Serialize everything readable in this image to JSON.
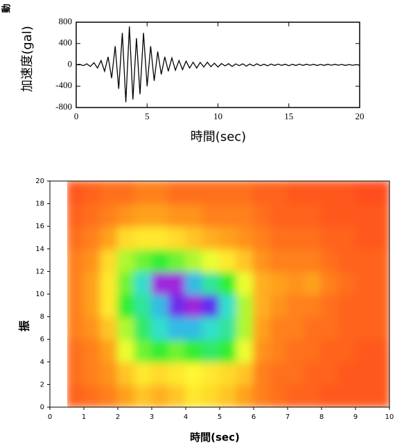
{
  "chart_data": [
    {
      "type": "line",
      "corner_label": "動",
      "xlabel": "時間(sec)",
      "ylabel": "加速度(gal)",
      "color": "#000000",
      "xlim": [
        0,
        20
      ],
      "xticks": [
        0,
        5,
        10,
        15,
        20
      ],
      "ylim": [
        -800,
        800
      ],
      "yticks": [
        -800,
        -400,
        0,
        400,
        800
      ],
      "x": [
        0,
        0.25,
        0.5,
        0.75,
        1,
        1.25,
        1.5,
        1.75,
        2,
        2.25,
        2.5,
        2.75,
        3,
        3.25,
        3.5,
        3.75,
        4,
        4.25,
        4.5,
        4.75,
        5,
        5.25,
        5.5,
        5.75,
        6,
        6.25,
        6.5,
        6.75,
        7,
        7.25,
        7.5,
        7.75,
        8,
        8.25,
        8.5,
        8.75,
        9,
        9.25,
        9.5,
        9.75,
        10,
        10.25,
        10.5,
        10.75,
        11,
        11.25,
        11.5,
        11.75,
        12,
        12.25,
        12.5,
        12.75,
        13,
        13.25,
        13.5,
        13.75,
        14,
        14.25,
        14.5,
        14.75,
        15,
        15.25,
        15.5,
        15.75,
        16,
        16.25,
        16.5,
        16.75,
        17,
        17.25,
        17.5,
        17.75,
        18,
        18.25,
        18.5,
        18.75,
        19,
        19.25,
        19.5,
        19.75,
        20
      ],
      "values": [
        0,
        10,
        -15,
        20,
        -30,
        40,
        -60,
        80,
        -120,
        150,
        -250,
        350,
        -450,
        600,
        -700,
        720,
        -650,
        500,
        -550,
        600,
        -400,
        350,
        -300,
        250,
        -180,
        150,
        -120,
        130,
        -100,
        80,
        -90,
        70,
        -60,
        50,
        -60,
        45,
        -40,
        50,
        -35,
        30,
        -40,
        25,
        -20,
        22,
        -30,
        18,
        -15,
        20,
        -25,
        15,
        -18,
        20,
        -15,
        12,
        -18,
        15,
        -12,
        14,
        -10,
        12,
        -15,
        10,
        -12,
        14,
        -10,
        12,
        -8,
        10,
        -12,
        8,
        -10,
        12,
        -8,
        10,
        -6,
        8,
        -10,
        6,
        -8,
        5,
        -6
      ]
    },
    {
      "type": "heatmap",
      "xlabel": "時間(sec)",
      "ylabel": "振",
      "xlim": [
        0,
        10
      ],
      "xticks": [
        0,
        1,
        2,
        3,
        4,
        5,
        6,
        7,
        8,
        9,
        10
      ],
      "ylim": [
        0,
        20
      ],
      "yticks": [
        0,
        2,
        4,
        6,
        8,
        10,
        12,
        14,
        16,
        18,
        20
      ],
      "zlim": [
        0,
        100
      ],
      "colors": [
        "#ff2a1e",
        "#ff8a1a",
        "#ffff33",
        "#33ee33",
        "#33dddd",
        "#3333ff",
        "#cc22cc"
      ],
      "xbins": [
        0.5,
        1,
        1.5,
        2,
        2.5,
        3,
        3.5,
        4,
        4.5,
        5,
        5.5,
        6,
        6.5,
        7,
        7.5,
        8,
        8.5,
        9,
        9.5,
        10
      ],
      "ybins": [
        0,
        2,
        4,
        6,
        8,
        10,
        12,
        14,
        16,
        18,
        20
      ],
      "z": [
        [
          10,
          12,
          15,
          20,
          25,
          22,
          25,
          30,
          28,
          25,
          20,
          15,
          12,
          10,
          10,
          8,
          8,
          8,
          8
        ],
        [
          12,
          15,
          18,
          25,
          30,
          28,
          30,
          32,
          30,
          28,
          25,
          15,
          12,
          12,
          10,
          10,
          8,
          8,
          8
        ],
        [
          12,
          15,
          20,
          35,
          45,
          50,
          45,
          50,
          55,
          50,
          35,
          18,
          15,
          12,
          12,
          10,
          10,
          8,
          8
        ],
        [
          15,
          18,
          25,
          40,
          55,
          65,
          70,
          70,
          65,
          60,
          40,
          20,
          15,
          15,
          12,
          12,
          10,
          10,
          10
        ],
        [
          15,
          20,
          30,
          50,
          60,
          70,
          90,
          95,
          88,
          65,
          40,
          22,
          18,
          15,
          15,
          12,
          10,
          10,
          10
        ],
        [
          15,
          20,
          30,
          45,
          65,
          95,
          95,
          70,
          60,
          50,
          35,
          22,
          20,
          18,
          20,
          15,
          12,
          10,
          10
        ],
        [
          15,
          18,
          28,
          40,
          45,
          50,
          45,
          40,
          35,
          30,
          25,
          18,
          15,
          15,
          15,
          12,
          10,
          10,
          10
        ],
        [
          12,
          15,
          20,
          28,
          30,
          30,
          28,
          25,
          22,
          20,
          18,
          15,
          12,
          12,
          12,
          10,
          10,
          8,
          8
        ],
        [
          10,
          12,
          15,
          18,
          20,
          20,
          18,
          18,
          15,
          15,
          15,
          12,
          10,
          10,
          10,
          8,
          8,
          8,
          8
        ],
        [
          8,
          10,
          12,
          12,
          15,
          15,
          12,
          12,
          12,
          12,
          12,
          10,
          10,
          8,
          8,
          8,
          8,
          6,
          6
        ]
      ]
    }
  ]
}
